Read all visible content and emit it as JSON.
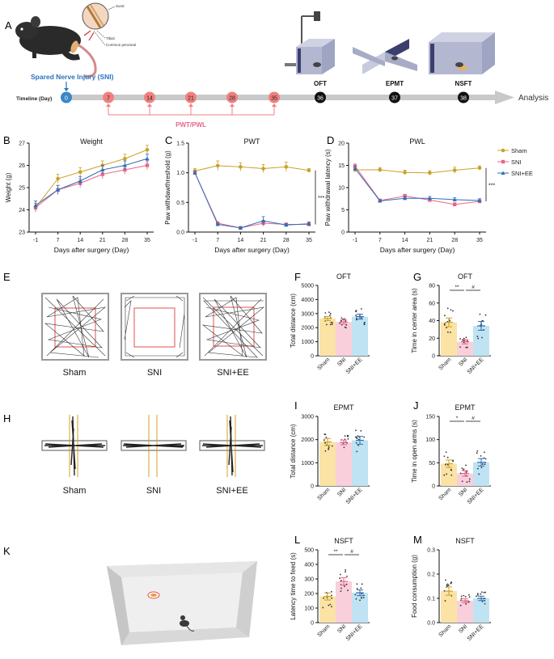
{
  "colors": {
    "sham": "#c9a227",
    "sni": "#e8668a",
    "sniee": "#2f6db5",
    "sham_bar": "#fbe3a6",
    "sni_bar": "#f9cfdc",
    "sniee_bar": "#bfe3f3",
    "timeline": "#c9c9c9",
    "marker_pink": "#f08080",
    "marker_blue": "#3a86c8",
    "annotation_blue": "#2a73c0",
    "pwt_label": "#e8668a"
  },
  "panel_a": {
    "letter": "A",
    "sni_label": "Spared Nerve Injury (SNI)",
    "nerve_labels": [
      "Sural",
      "Tibial",
      "Common peroneal"
    ],
    "timeline_label": "Timeline (Day)",
    "days": [
      "0",
      "7",
      "14",
      "21",
      "28",
      "35",
      "36",
      "37",
      "38"
    ],
    "pwt_label": "PWT/PWL",
    "tests": [
      "OFT",
      "EPMT",
      "NSFT"
    ],
    "analysis": "Analysis"
  },
  "letters": {
    "b": "B",
    "c": "C",
    "d": "D",
    "e": "E",
    "f": "F",
    "g": "G",
    "h": "H",
    "i": "I",
    "j": "J",
    "k": "K",
    "l": "L",
    "m": "M"
  },
  "panel_e": {
    "labels": [
      "Sham",
      "SNI",
      "SNI+EE"
    ]
  },
  "panel_h": {
    "labels": [
      "Sham",
      "SNI",
      "SNI+EE"
    ]
  },
  "legend": {
    "items": [
      "Sham",
      "SNI",
      "SNI+EE"
    ]
  },
  "chart_data": [
    {
      "id": "B",
      "type": "line",
      "title": "Weight",
      "xlabel": "Days after surgery (Day)",
      "ylabel": "Weight (g)",
      "x": [
        -1,
        7,
        14,
        21,
        28,
        35
      ],
      "xticks": [
        "-1",
        "7",
        "14",
        "21",
        "28",
        "35"
      ],
      "ylim": [
        23,
        27
      ],
      "yticks": [
        "23",
        "24",
        "25",
        "26",
        "27"
      ],
      "series": [
        {
          "name": "Sham",
          "values": [
            24.1,
            25.4,
            25.7,
            26.0,
            26.3,
            26.7
          ],
          "err": [
            0.2,
            0.2,
            0.2,
            0.2,
            0.2,
            0.2
          ]
        },
        {
          "name": "SNI",
          "values": [
            24.1,
            24.9,
            25.2,
            25.6,
            25.8,
            26.0
          ],
          "err": [
            0.2,
            0.2,
            0.2,
            0.2,
            0.2,
            0.2
          ]
        },
        {
          "name": "SNI+EE",
          "values": [
            24.2,
            24.9,
            25.3,
            25.8,
            26.0,
            26.3
          ],
          "err": [
            0.2,
            0.2,
            0.2,
            0.2,
            0.2,
            0.2
          ]
        }
      ]
    },
    {
      "id": "C",
      "type": "line",
      "title": "PWT",
      "xlabel": "Days after surgery (Day)",
      "ylabel": "Paw withdawthreshold (g)",
      "x": [
        -1,
        7,
        14,
        21,
        28,
        35
      ],
      "xticks": [
        "-1",
        "7",
        "14",
        "21",
        "28",
        "35"
      ],
      "ylim": [
        0,
        1.5
      ],
      "yticks": [
        "0.0",
        "0.5",
        "1.0",
        "1.5"
      ],
      "series": [
        {
          "name": "Sham",
          "values": [
            1.03,
            1.12,
            1.1,
            1.07,
            1.1,
            1.04
          ],
          "err": [
            0.04,
            0.08,
            0.07,
            0.07,
            0.08,
            0.03
          ]
        },
        {
          "name": "SNI",
          "values": [
            1.0,
            0.15,
            0.07,
            0.15,
            0.13,
            0.13
          ],
          "err": [
            0.03,
            0.02,
            0.02,
            0.05,
            0.02,
            0.03
          ]
        },
        {
          "name": "SNI+EE",
          "values": [
            1.0,
            0.13,
            0.07,
            0.19,
            0.12,
            0.14
          ],
          "err": [
            0.03,
            0.02,
            0.02,
            0.07,
            0.02,
            0.03
          ]
        }
      ],
      "significance": "***"
    },
    {
      "id": "D",
      "type": "line",
      "title": "PWL",
      "xlabel": "Days after surgery (Day)",
      "ylabel": "Paw withdrawal latency (s)",
      "x": [
        -1,
        7,
        14,
        21,
        28,
        35
      ],
      "xticks": [
        "-1",
        "7",
        "14",
        "21",
        "28",
        "35"
      ],
      "ylim": [
        0,
        20
      ],
      "yticks": [
        "0",
        "5",
        "10",
        "15",
        "20"
      ],
      "series": [
        {
          "name": "Sham",
          "values": [
            14.0,
            14.0,
            13.4,
            13.3,
            13.9,
            14.4
          ],
          "err": [
            0.5,
            0.5,
            0.5,
            0.5,
            0.7,
            0.5
          ]
        },
        {
          "name": "SNI",
          "values": [
            14.8,
            7.1,
            8.1,
            7.2,
            6.2,
            6.9
          ],
          "err": [
            0.5,
            0.3,
            0.4,
            0.3,
            0.4,
            0.4
          ]
        },
        {
          "name": "SNI+EE",
          "values": [
            14.3,
            7.0,
            7.6,
            7.6,
            7.3,
            7.1
          ],
          "err": [
            0.5,
            0.3,
            0.4,
            0.4,
            0.4,
            0.4
          ]
        }
      ],
      "significance": "***"
    },
    {
      "id": "F",
      "type": "bar",
      "title": "OFT",
      "ylabel": "Total distance (cm)",
      "categories": [
        "Sham",
        "SNI",
        "SNI+EE"
      ],
      "values": [
        2650,
        2400,
        2780
      ],
      "err": [
        150,
        150,
        180
      ],
      "ylim": [
        0,
        5000
      ],
      "yticks": [
        "0",
        "1000",
        "2000",
        "3000",
        "4000",
        "5000"
      ],
      "sig": []
    },
    {
      "id": "G",
      "type": "bar",
      "title": "OFT",
      "ylabel": "Time in center area (s)",
      "categories": [
        "Sham",
        "SNI",
        "SNI+EE"
      ],
      "values": [
        38,
        16,
        34
      ],
      "err": [
        5,
        2.5,
        5
      ],
      "ylim": [
        0,
        80
      ],
      "yticks": [
        "0",
        "20",
        "40",
        "60",
        "80"
      ],
      "sig": [
        {
          "a": 0,
          "b": 1,
          "text": "**"
        },
        {
          "a": 1,
          "b": 2,
          "text": "#"
        }
      ]
    },
    {
      "id": "I",
      "type": "bar",
      "title": "EPMT",
      "ylabel": "Total distance (cm)",
      "categories": [
        "Sham",
        "SNI",
        "SNI+EE"
      ],
      "values": [
        1900,
        1880,
        1970
      ],
      "err": [
        150,
        100,
        170
      ],
      "ylim": [
        0,
        3000
      ],
      "yticks": [
        "0",
        "1000",
        "2000",
        "3000"
      ],
      "sig": []
    },
    {
      "id": "J",
      "type": "bar",
      "title": "EPMT",
      "ylabel": "Time in open arms (s)",
      "categories": [
        "Sham",
        "SNI",
        "SNI+EE"
      ],
      "values": [
        48,
        27,
        51
      ],
      "err": [
        8,
        6,
        8
      ],
      "ylim": [
        0,
        150
      ],
      "yticks": [
        "0",
        "50",
        "100",
        "150"
      ],
      "sig": [
        {
          "a": 0,
          "b": 1,
          "text": "*"
        },
        {
          "a": 1,
          "b": 2,
          "text": "#"
        }
      ]
    },
    {
      "id": "L",
      "type": "bar",
      "title": "NSFT",
      "ylabel": "Latency time to feed (s)",
      "categories": [
        "Sham",
        "SNI",
        "SNI+EE"
      ],
      "values": [
        180,
        283,
        205
      ],
      "err": [
        25,
        25,
        20
      ],
      "ylim": [
        0,
        500
      ],
      "yticks": [
        "0",
        "100",
        "200",
        "300",
        "400",
        "500"
      ],
      "sig": [
        {
          "a": 0,
          "b": 1,
          "text": "**"
        },
        {
          "a": 1,
          "b": 2,
          "text": "#"
        }
      ]
    },
    {
      "id": "M",
      "type": "bar",
      "title": "NSFT",
      "ylabel": "Food consumption (g)",
      "categories": [
        "Sham",
        "SNI",
        "SNI+EE"
      ],
      "values": [
        0.13,
        0.09,
        0.1
      ],
      "err": [
        0.017,
        0.008,
        0.009
      ],
      "ylim": [
        0,
        0.3
      ],
      "yticks": [
        "0.0",
        "0.1",
        "0.2",
        "0.3"
      ],
      "sig": []
    }
  ]
}
